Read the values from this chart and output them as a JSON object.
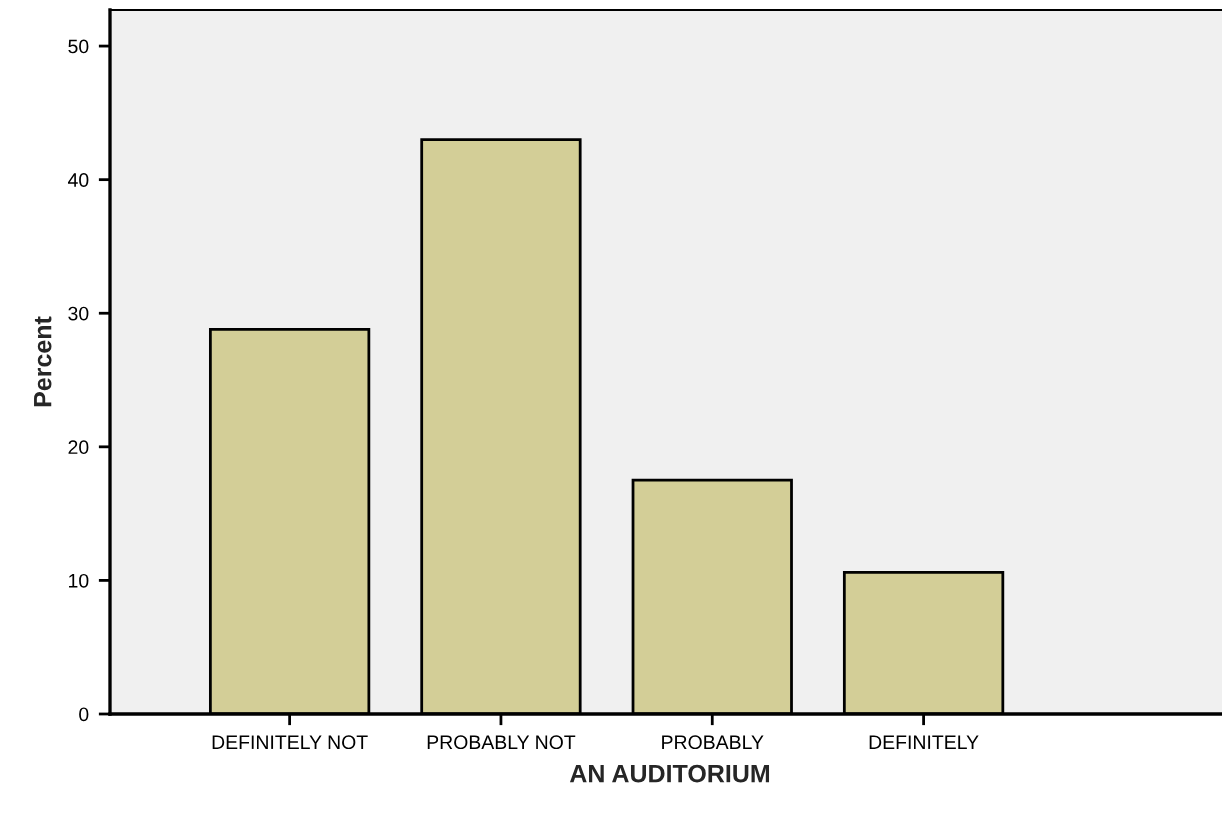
{
  "chart_data": {
    "type": "bar",
    "xlabel": "AN AUDITORIUM",
    "ylabel": "Percent",
    "categories": [
      "DEFINITELY NOT",
      "PROBABLY NOT",
      "PROBABLY",
      "DEFINITELY"
    ],
    "values": [
      28.8,
      43.0,
      17.5,
      10.6
    ],
    "color": "#d3ce97",
    "ylim": [
      0,
      52.7
    ],
    "yticks": [
      0,
      10,
      20,
      30,
      40,
      50
    ],
    "grid": false,
    "legend": false
  }
}
